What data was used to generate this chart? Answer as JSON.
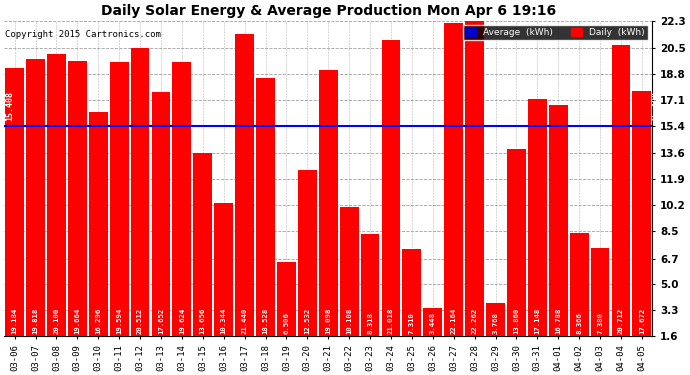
{
  "title": "Daily Solar Energy & Average Production Mon Apr 6 19:16",
  "copyright": "Copyright 2015 Cartronics.com",
  "average_value": 15.408,
  "bar_color": "#FF0000",
  "average_line_color": "#0000FF",
  "background_color": "#FFFFFF",
  "plot_bg_color": "#FFFFFF",
  "grid_color": "#888888",
  "categories": [
    "03-06",
    "03-07",
    "03-08",
    "03-09",
    "03-10",
    "03-11",
    "03-12",
    "03-13",
    "03-14",
    "03-15",
    "03-16",
    "03-17",
    "03-18",
    "03-19",
    "03-20",
    "03-21",
    "03-22",
    "03-23",
    "03-24",
    "03-25",
    "03-26",
    "03-27",
    "03-28",
    "03-29",
    "03-30",
    "03-31",
    "04-01",
    "04-02",
    "04-03",
    "04-04",
    "04-05"
  ],
  "values": [
    19.184,
    19.818,
    20.1,
    19.664,
    16.296,
    19.594,
    20.512,
    17.652,
    19.624,
    13.656,
    10.344,
    21.44,
    18.528,
    6.506,
    12.532,
    19.098,
    10.108,
    8.318,
    21.018,
    7.31,
    3.448,
    22.164,
    22.262,
    3.768,
    13.86,
    17.148,
    16.788,
    8.366,
    7.38,
    20.712,
    17.672
  ],
  "ylim": [
    1.6,
    22.3
  ],
  "yticks": [
    1.6,
    3.3,
    5.0,
    6.7,
    8.5,
    10.2,
    11.9,
    13.6,
    15.4,
    17.1,
    18.8,
    20.5,
    22.3
  ],
  "legend_avg_color": "#0000CC",
  "legend_daily_color": "#FF0000",
  "figsize": [
    6.9,
    3.75
  ],
  "dpi": 100
}
